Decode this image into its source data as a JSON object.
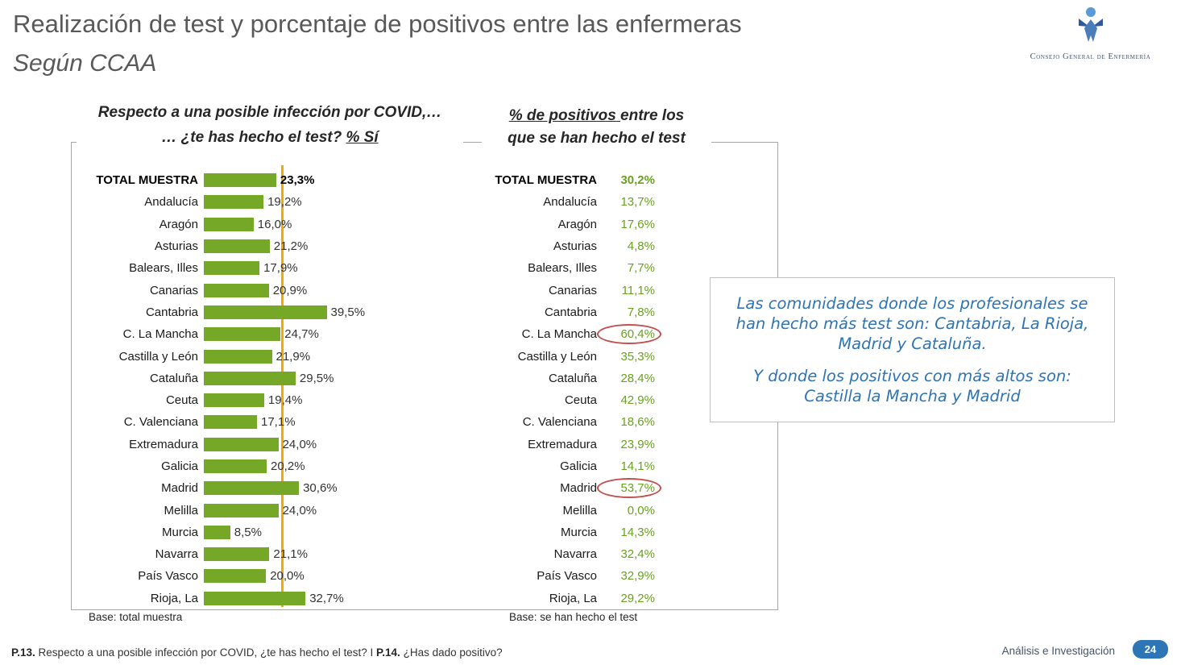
{
  "header": {
    "title": "Realización de test y porcentaje de positivos entre las enfermeras",
    "subtitle": "Según CCAA",
    "logo_text": "Consejo General de Enfermería"
  },
  "left_chart": {
    "header_line1": "Respecto a una posible infección por COVID,…",
    "header_line2_prefix": "… ¿te has hecho el test? ",
    "header_line2_underlined": "% Sí",
    "base_note": "Base: total muestra"
  },
  "right_chart": {
    "header_line1_underlined": "% de positivos ",
    "header_line1_rest": "entre los",
    "header_line2": "que se han hecho el test",
    "base_note": "Base: se han hecho el test"
  },
  "callout": {
    "p1": "Las comunidades donde los profesionales se han hecho más test son: Cantabria, La Rioja, Madrid y Cataluña.",
    "p2": "Y donde los positivos con más altos son: Castilla la Mancha y Madrid"
  },
  "footer": {
    "q1_bold": "P.13.",
    "q1_text": " Respecto a una posible infección por COVID, ¿te has hecho el test? I ",
    "q2_bold": "P.14.",
    "q2_text": " ¿Has dado positivo?",
    "brand": "Análisis e Investigación",
    "page_number": "24"
  },
  "colors": {
    "bar_green": "#76A828",
    "value_green": "#69A121",
    "reference_orange": "#F5A800",
    "circle_red": "#C0504D",
    "callout_blue": "#2E74B5",
    "badge_blue": "#2E75B6"
  },
  "chart_data": {
    "type": "bar",
    "orientation": "horizontal",
    "title": "Realización de test y porcentaje de positivos entre las enfermeras según CCAA",
    "categories": [
      "TOTAL MUESTRA",
      "Andalucía",
      "Aragón",
      "Asturias",
      "Balears, Illes",
      "Canarias",
      "Cantabria",
      "C. La Mancha",
      "Castilla y León",
      "Cataluña",
      "Ceuta",
      "C. Valenciana",
      "Extremadura",
      "Galicia",
      "Madrid",
      "Melilla",
      "Murcia",
      "Navarra",
      "País Vasco",
      "Rioja, La"
    ],
    "series": [
      {
        "name": "¿Te has hecho el test? % Sí",
        "values": [
          23.3,
          19.2,
          16.0,
          21.2,
          17.9,
          20.9,
          39.5,
          24.7,
          21.9,
          29.5,
          19.4,
          17.1,
          24.0,
          20.2,
          30.6,
          24.0,
          8.5,
          21.1,
          20.0,
          32.7
        ],
        "labels": [
          "23,3%",
          "19,2%",
          "16,0%",
          "21,2%",
          "17,9%",
          "20,9%",
          "39,5%",
          "24,7%",
          "21,9%",
          "29,5%",
          "19,4%",
          "17,1%",
          "24,0%",
          "20,2%",
          "30,6%",
          "24,0%",
          "8,5%",
          "21,1%",
          "20,0%",
          "32,7%"
        ]
      },
      {
        "name": "% de positivos entre los que se han hecho el test",
        "values": [
          30.2,
          13.7,
          17.6,
          4.8,
          7.7,
          11.1,
          7.8,
          60.4,
          35.3,
          28.4,
          42.9,
          18.6,
          23.9,
          14.1,
          53.7,
          0.0,
          14.3,
          32.4,
          32.9,
          29.2
        ],
        "labels": [
          "30,2%",
          "13,7%",
          "17,6%",
          "4,8%",
          "7,7%",
          "11,1%",
          "7,8%",
          "60,4%",
          "35,3%",
          "28,4%",
          "42,9%",
          "18,6%",
          "23,9%",
          "14,1%",
          "53,7%",
          "0,0%",
          "14,3%",
          "32,4%",
          "32,9%",
          "29,2%"
        ],
        "circled_indices": [
          7,
          14
        ]
      }
    ],
    "reference_line": {
      "value": 23.3
    },
    "xlim": [
      0,
      45
    ],
    "legend": "none",
    "grid": "off"
  }
}
